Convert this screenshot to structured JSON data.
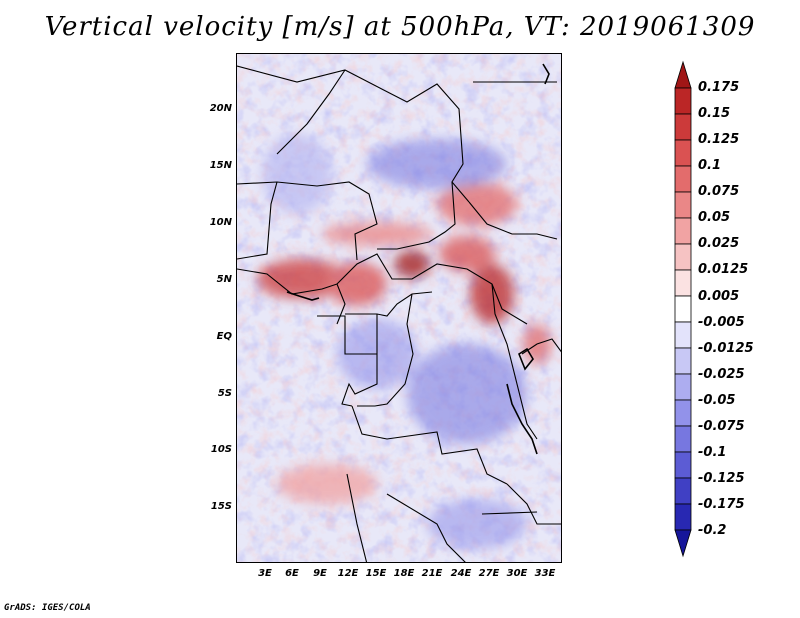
{
  "title": "Vertical velocity [m/s] at 500hPa, VT: 2019061309",
  "footer": "GrADS: IGES/COLA",
  "lat_ticks": [
    "20N",
    "15N",
    "10N",
    "5N",
    "EQ",
    "5S",
    "10S",
    "15S"
  ],
  "lon_ticks": [
    "3E",
    "6E",
    "9E",
    "12E",
    "15E",
    "18E",
    "21E",
    "24E",
    "27E",
    "30E",
    "33E"
  ],
  "colorbar": {
    "labels": [
      "0.175",
      "0.15",
      "0.125",
      "0.1",
      "0.075",
      "0.05",
      "0.025",
      "0.0125",
      "0.005",
      "-0.005",
      "-0.0125",
      "-0.025",
      "-0.05",
      "-0.075",
      "-0.1",
      "-0.125",
      "-0.175",
      "-0.2"
    ],
    "colors": [
      "#a01616",
      "#bb2626",
      "#cc3a3a",
      "#da5252",
      "#e36c6c",
      "#ea8787",
      "#f1a3a3",
      "#f6c3c3",
      "#fbe2e2",
      "#ffffff",
      "#e3e3fb",
      "#c8c8f5",
      "#adadf0",
      "#9292ea",
      "#7777e0",
      "#5c5cd4",
      "#4040c4",
      "#2828b2",
      "#16169a"
    ]
  }
}
